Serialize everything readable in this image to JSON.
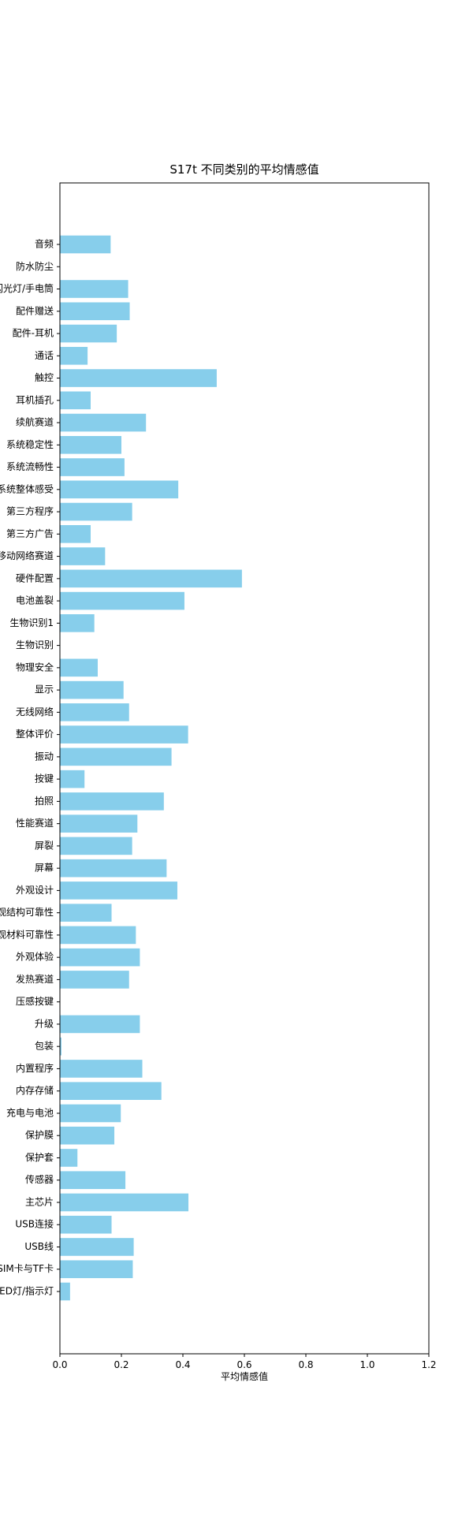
{
  "chart_data": {
    "type": "bar",
    "orientation": "horizontal",
    "title": "S17t 不同类别的平均情感值",
    "xlabel": "平均情感值",
    "ylabel": "",
    "xlim": [
      0,
      1.2
    ],
    "xticks": [
      "0.0",
      "0.2",
      "0.4",
      "0.6",
      "0.8",
      "1.0",
      "1.2"
    ],
    "grid": false,
    "bar_color": "#87ceeb",
    "categories": [
      "音频",
      "防水防尘",
      "闪光灯/手电筒",
      "配件赠送",
      "配件-耳机",
      "通话",
      "触控",
      "耳机插孔",
      "续航赛道",
      "系统稳定性",
      "系统流畅性",
      "系统整体感受",
      "第三方程序",
      "第三方广告",
      "移动网络赛道",
      "硬件配置",
      "电池盖裂",
      "生物识别1",
      "生物识别",
      "物理安全",
      "显示",
      "无线网络",
      "整体评价",
      "振动",
      "按键",
      "拍照",
      "性能赛道",
      "屏裂",
      "屏幕",
      "外观设计",
      "外观结构可靠性",
      "外观材料可靠性",
      "外观体验",
      "发热赛道",
      "压感按键",
      "升级",
      "包装",
      "内置程序",
      "内存存储",
      "充电与电池",
      "保护膜",
      "保护套",
      "传感器",
      "主芯片",
      "USB连接",
      "USB线",
      "SIM卡与TF卡",
      "LED灯/指示灯"
    ],
    "values": [
      0.165,
      0.0,
      0.222,
      0.227,
      0.185,
      0.09,
      0.51,
      0.1,
      0.28,
      0.2,
      0.21,
      0.385,
      0.235,
      0.1,
      0.147,
      0.592,
      0.405,
      0.112,
      0.0,
      0.123,
      0.207,
      0.225,
      0.417,
      0.363,
      0.08,
      0.338,
      0.252,
      0.235,
      0.347,
      0.382,
      0.168,
      0.247,
      0.26,
      0.225,
      0.0,
      0.26,
      0.005,
      0.268,
      0.33,
      0.198,
      0.177,
      0.057,
      0.213,
      0.418,
      0.168,
      0.24,
      0.237,
      0.033
    ]
  }
}
